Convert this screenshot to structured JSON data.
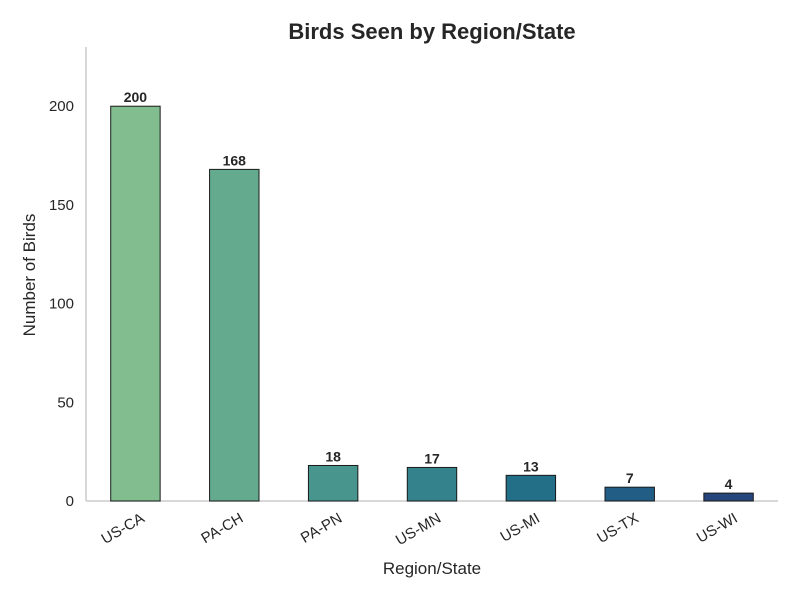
{
  "chart_data": {
    "type": "bar",
    "title": "Birds Seen by Region/State",
    "xlabel": "Region/State",
    "ylabel": "Number of Birds",
    "categories": [
      "US-CA",
      "PA-CH",
      "PA-PN",
      "US-MN",
      "US-MI",
      "US-TX",
      "US-WI"
    ],
    "values": [
      200,
      168,
      18,
      17,
      13,
      7,
      4
    ],
    "ylim": [
      0,
      230
    ],
    "yticks": [
      0,
      50,
      100,
      150,
      200
    ],
    "grid": false,
    "legend": "none",
    "x_tick_rotation": "slanted",
    "colors": [
      "#81bd8f",
      "#63aa8f",
      "#48958d",
      "#34838c",
      "#246f88",
      "#215d85",
      "#26457a"
    ],
    "bar_edge_color": "#1a1a1a",
    "axis_color": "#cccccc"
  }
}
